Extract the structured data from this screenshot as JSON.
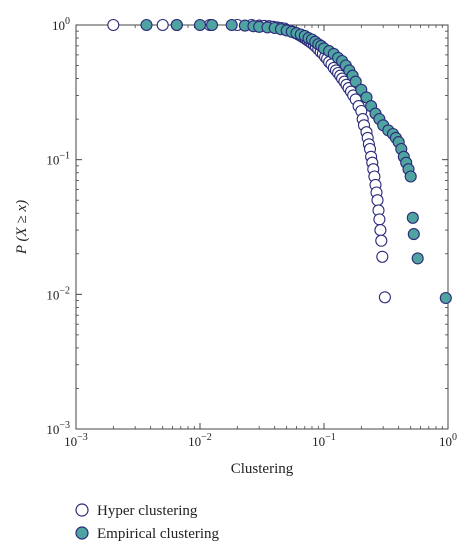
{
  "chart_data": {
    "type": "scatter",
    "title": "",
    "xlabel": "Clustering",
    "ylabel": "P (X ≥ x)",
    "xscale": "log",
    "yscale": "log",
    "xlim": [
      0.001,
      1
    ],
    "ylim": [
      0.001,
      1
    ],
    "x_ticks": [
      {
        "base": "10",
        "exp": "−3",
        "value": 0.001
      },
      {
        "base": "10",
        "exp": "−2",
        "value": 0.01
      },
      {
        "base": "10",
        "exp": "−1",
        "value": 0.1
      },
      {
        "base": "10",
        "exp": "0",
        "value": 1
      }
    ],
    "y_ticks": [
      {
        "base": "10",
        "exp": "−3",
        "value": 0.001
      },
      {
        "base": "10",
        "exp": "−2",
        "value": 0.01
      },
      {
        "base": "10",
        "exp": "−1",
        "value": 0.1
      },
      {
        "base": "10",
        "exp": "0",
        "value": 1
      }
    ],
    "grid": false,
    "legend_position": "below-left",
    "series": [
      {
        "name": "Hyper clustering",
        "marker": "open-circle",
        "color": "#2b2a7a",
        "fill": "#ffffff",
        "points": [
          [
            0.002,
            1.0
          ],
          [
            0.005,
            1.0
          ],
          [
            0.0065,
            1.0
          ],
          [
            0.012,
            1.0
          ],
          [
            0.02,
            1.0
          ],
          [
            0.026,
            1.0
          ],
          [
            0.03,
            0.99
          ],
          [
            0.033,
            0.985
          ],
          [
            0.036,
            0.98
          ],
          [
            0.039,
            0.97
          ],
          [
            0.042,
            0.96
          ],
          [
            0.045,
            0.95
          ],
          [
            0.048,
            0.94
          ],
          [
            0.05,
            0.92
          ],
          [
            0.053,
            0.91
          ],
          [
            0.056,
            0.89
          ],
          [
            0.059,
            0.87
          ],
          [
            0.062,
            0.85
          ],
          [
            0.065,
            0.83
          ],
          [
            0.068,
            0.81
          ],
          [
            0.071,
            0.79
          ],
          [
            0.074,
            0.77
          ],
          [
            0.077,
            0.75
          ],
          [
            0.08,
            0.73
          ],
          [
            0.083,
            0.71
          ],
          [
            0.086,
            0.69
          ],
          [
            0.09,
            0.66
          ],
          [
            0.094,
            0.63
          ],
          [
            0.098,
            0.61
          ],
          [
            0.102,
            0.58
          ],
          [
            0.106,
            0.56
          ],
          [
            0.11,
            0.53
          ],
          [
            0.115,
            0.51
          ],
          [
            0.12,
            0.48
          ],
          [
            0.125,
            0.46
          ],
          [
            0.13,
            0.44
          ],
          [
            0.135,
            0.42
          ],
          [
            0.14,
            0.4
          ],
          [
            0.146,
            0.38
          ],
          [
            0.152,
            0.36
          ],
          [
            0.158,
            0.34
          ],
          [
            0.165,
            0.32
          ],
          [
            0.172,
            0.3
          ],
          [
            0.18,
            0.28
          ],
          [
            0.19,
            0.25
          ],
          [
            0.2,
            0.23
          ],
          [
            0.205,
            0.2
          ],
          [
            0.21,
            0.18
          ],
          [
            0.22,
            0.16
          ],
          [
            0.225,
            0.145
          ],
          [
            0.23,
            0.13
          ],
          [
            0.235,
            0.12
          ],
          [
            0.24,
            0.105
          ],
          [
            0.245,
            0.095
          ],
          [
            0.25,
            0.085
          ],
          [
            0.255,
            0.075
          ],
          [
            0.26,
            0.065
          ],
          [
            0.265,
            0.057
          ],
          [
            0.27,
            0.05
          ],
          [
            0.275,
            0.042
          ],
          [
            0.28,
            0.036
          ],
          [
            0.285,
            0.03
          ],
          [
            0.29,
            0.025
          ],
          [
            0.295,
            0.019
          ],
          [
            0.31,
            0.0095
          ]
        ]
      },
      {
        "name": "Empirical clustering",
        "marker": "filled-circle",
        "color": "#2b2a7a",
        "fill": "#4fa3a0",
        "points": [
          [
            0.0037,
            1.0
          ],
          [
            0.0065,
            1.0
          ],
          [
            0.01,
            1.0
          ],
          [
            0.0125,
            1.0
          ],
          [
            0.018,
            1.0
          ],
          [
            0.023,
            0.99
          ],
          [
            0.027,
            0.98
          ],
          [
            0.03,
            0.97
          ],
          [
            0.035,
            0.96
          ],
          [
            0.04,
            0.95
          ],
          [
            0.045,
            0.93
          ],
          [
            0.05,
            0.91
          ],
          [
            0.055,
            0.89
          ],
          [
            0.06,
            0.87
          ],
          [
            0.065,
            0.85
          ],
          [
            0.07,
            0.83
          ],
          [
            0.075,
            0.8
          ],
          [
            0.08,
            0.78
          ],
          [
            0.085,
            0.75
          ],
          [
            0.09,
            0.72
          ],
          [
            0.095,
            0.7
          ],
          [
            0.1,
            0.67
          ],
          [
            0.11,
            0.64
          ],
          [
            0.12,
            0.61
          ],
          [
            0.13,
            0.57
          ],
          [
            0.14,
            0.54
          ],
          [
            0.15,
            0.5
          ],
          [
            0.16,
            0.46
          ],
          [
            0.17,
            0.42
          ],
          [
            0.18,
            0.38
          ],
          [
            0.2,
            0.33
          ],
          [
            0.22,
            0.29
          ],
          [
            0.24,
            0.25
          ],
          [
            0.26,
            0.22
          ],
          [
            0.28,
            0.2
          ],
          [
            0.3,
            0.18
          ],
          [
            0.33,
            0.165
          ],
          [
            0.36,
            0.155
          ],
          [
            0.38,
            0.145
          ],
          [
            0.4,
            0.135
          ],
          [
            0.42,
            0.12
          ],
          [
            0.44,
            0.105
          ],
          [
            0.46,
            0.095
          ],
          [
            0.48,
            0.085
          ],
          [
            0.5,
            0.075
          ],
          [
            0.52,
            0.037
          ],
          [
            0.53,
            0.028
          ],
          [
            0.57,
            0.0185
          ],
          [
            0.96,
            0.0094
          ]
        ]
      }
    ]
  }
}
